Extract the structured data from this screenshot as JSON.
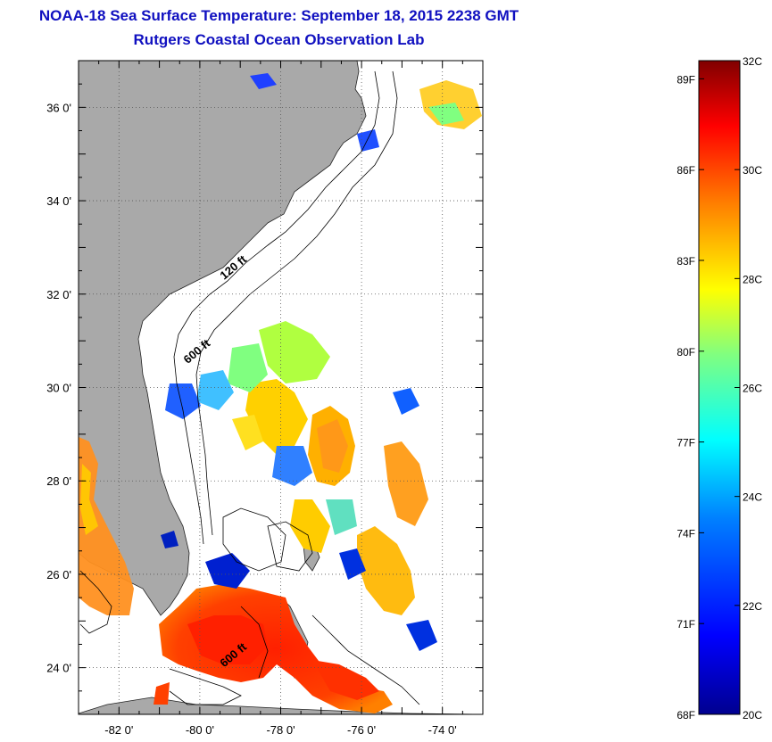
{
  "header": {
    "title": "NOAA-18 Sea Surface Temperature:  September 18, 2015 2238 GMT",
    "subtitle": "Rutgers Coastal Ocean Observation Lab"
  },
  "map": {
    "lon_range": [
      -83.0,
      -73.0
    ],
    "lat_range": [
      23.0,
      37.0
    ],
    "lon_ticks": [
      {
        "value": -82,
        "label": "-82 0'"
      },
      {
        "value": -80,
        "label": "-80 0'"
      },
      {
        "value": -78,
        "label": "-78 0'"
      },
      {
        "value": -76,
        "label": "-76 0'"
      },
      {
        "value": -74,
        "label": "-74 0'"
      }
    ],
    "lat_ticks": [
      {
        "value": 36,
        "label": "36 0'"
      },
      {
        "value": 34,
        "label": "34 0'"
      },
      {
        "value": 32,
        "label": "32 0'"
      },
      {
        "value": 30,
        "label": "30 0'"
      },
      {
        "value": 28,
        "label": "28 0'"
      },
      {
        "value": 26,
        "label": "26 0'"
      },
      {
        "value": 24,
        "label": "24 0'"
      }
    ],
    "grid": "dotted",
    "land_color": "#a9a9a9",
    "no_data_color": "#ffffff",
    "contour_labels": [
      {
        "text": "120 ft",
        "lon": -79.4,
        "lat": 32.3
      },
      {
        "text": "600 ft",
        "lon": -80.3,
        "lat": 30.5
      },
      {
        "text": "600 ft",
        "lon": -79.4,
        "lat": 24.0
      }
    ]
  },
  "colorbar": {
    "min_c": 20,
    "max_c": 32,
    "celsius_ticks": [
      {
        "value": 32,
        "label": "32C"
      },
      {
        "value": 30,
        "label": "30C"
      },
      {
        "value": 28,
        "label": "28C"
      },
      {
        "value": 26,
        "label": "26C"
      },
      {
        "value": 24,
        "label": "24C"
      },
      {
        "value": 22,
        "label": "22C"
      },
      {
        "value": 20,
        "label": "20C"
      }
    ],
    "fahrenheit_ticks": [
      {
        "value": 89,
        "label": "89F"
      },
      {
        "value": 86,
        "label": "86F"
      },
      {
        "value": 83,
        "label": "83F"
      },
      {
        "value": 80,
        "label": "80F"
      },
      {
        "value": 77,
        "label": "77F"
      },
      {
        "value": 74,
        "label": "74F"
      },
      {
        "value": 71,
        "label": "71F"
      },
      {
        "value": 68,
        "label": "68F"
      }
    ]
  },
  "colors": {
    "title": "#1010c0",
    "gradient": [
      "#00008f",
      "#0000ff",
      "#0080ff",
      "#00ffff",
      "#80ff80",
      "#ffff00",
      "#ff8000",
      "#ff0000",
      "#800000"
    ]
  }
}
